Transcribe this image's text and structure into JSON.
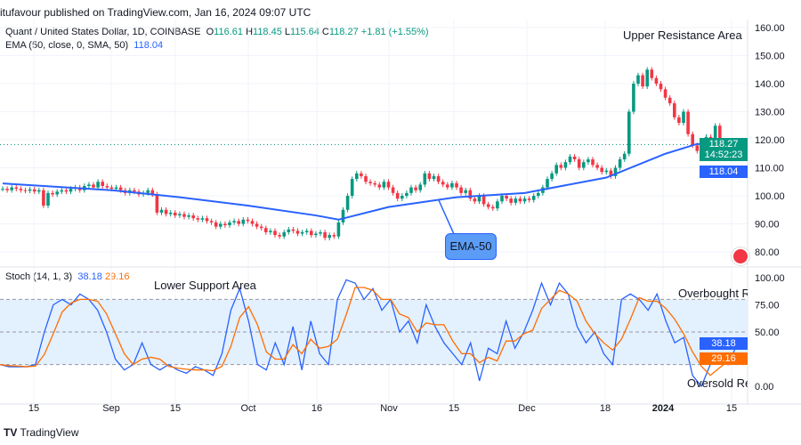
{
  "header": {
    "published": "itufavour published on TradingView.com, Jan 16, 2024 09:07 UTC"
  },
  "legend": {
    "symbol": "Quant / United States Dollar, 1D, COINBASE",
    "o_label": "O",
    "o": "116.61",
    "h_label": "H",
    "h": "118.45",
    "l_label": "L",
    "l": "115.64",
    "c_label": "C",
    "c": "118.27",
    "change": "+1.81 (+1.55%)",
    "ema_label": "EMA (50, close, 0, SMA, 50)",
    "ema_value": "118.04"
  },
  "stoch_legend": {
    "label": "Stoch (14, 1, 3)",
    "k": "38.18",
    "d": "29.16"
  },
  "annotations": {
    "upper": "Upper Resistance Area",
    "lower": "Lower Support Area",
    "overbought": "Overbought Regi",
    "oversold": "Oversold Regi",
    "ema_callout": "EMA-50"
  },
  "price_tags": {
    "last": "118.27",
    "countdown": "14:52:23",
    "ema": "118.04"
  },
  "stoch_tags": {
    "k": "38.18",
    "d": "29.16"
  },
  "footer": {
    "brand": "TradingView"
  },
  "colors": {
    "up": "#089981",
    "down": "#f23645",
    "ema": "#2962ff",
    "k": "#2962ff",
    "d": "#ff6d00",
    "band": "#e3f0fd"
  },
  "chart_data": [
    {
      "type": "candlestick",
      "title": "Quant / United States Dollar, 1D, COINBASE",
      "start_date": "2023-08-08",
      "end_date": "2024-01-16",
      "ylim": [
        78,
        162
      ],
      "y_ticks": [
        "160.00",
        "150.00",
        "140.00",
        "130.00",
        "120.00",
        "110.00",
        "100.00",
        "90.00",
        "80.00"
      ],
      "x_ticks": [
        "15",
        "Sep",
        "15",
        "Oct",
        "16",
        "Nov",
        "15",
        "Dec",
        "18",
        "2024",
        "15"
      ],
      "closes": [
        102.5,
        102,
        103,
        102.5,
        102,
        101.8,
        102.3,
        101.5,
        102,
        96.5,
        101,
        100.5,
        101.5,
        102,
        101.5,
        102.5,
        103,
        102,
        103.5,
        104,
        103,
        105,
        103.5,
        103,
        102.5,
        103,
        102,
        101,
        102,
        101.5,
        100.5,
        101,
        102,
        100.5,
        94,
        95,
        93.5,
        94,
        93,
        93.5,
        92.5,
        93,
        92,
        91.5,
        92,
        91,
        90.5,
        89,
        90,
        89.5,
        90.5,
        91,
        90,
        91.5,
        91,
        90,
        89,
        88.5,
        87,
        87.5,
        86,
        85.5,
        87,
        88,
        87.5,
        86.5,
        87,
        87.5,
        86,
        86.5,
        87,
        85,
        86,
        85.5,
        90.5,
        95,
        100,
        106,
        108,
        107,
        105,
        104.5,
        104,
        103,
        105,
        103,
        101,
        99,
        100,
        101,
        103,
        102,
        104,
        108,
        106,
        107,
        105,
        104,
        103,
        104.5,
        103,
        101,
        102,
        99,
        98,
        100,
        97,
        96,
        95.5,
        98,
        100,
        99,
        97.5,
        99,
        98,
        99,
        98.5,
        100,
        101,
        103,
        106,
        108,
        111,
        110,
        112,
        114,
        113,
        110,
        112,
        113,
        111,
        110,
        108.5,
        109,
        107,
        110,
        113,
        115,
        130,
        140,
        143,
        139,
        145,
        142,
        140,
        138,
        135,
        133,
        128,
        126,
        130,
        122,
        118,
        116,
        117,
        121,
        118,
        125,
        119,
        117,
        116.6,
        118.27
      ],
      "ema50": {
        "dates": [
          "2023-08-08",
          "2023-09-01",
          "2023-09-16",
          "2023-10-01",
          "2023-10-16",
          "2023-10-21",
          "2023-11-01",
          "2023-11-16",
          "2023-12-01",
          "2023-12-19",
          "2024-01-01",
          "2024-01-08",
          "2024-01-16"
        ],
        "values": [
          104.4,
          102,
          99.5,
          96.5,
          93,
          91.5,
          96,
          99.5,
          101,
          106.5,
          115,
          118.5,
          118.04
        ]
      }
    },
    {
      "type": "line",
      "title": "Stoch (14, 1, 3)",
      "ylim": [
        0,
        100
      ],
      "y_ticks": [
        "100.00",
        "75.00",
        "50.00",
        "0.00"
      ],
      "levels": [
        80,
        50,
        20
      ],
      "k": [
        20,
        18,
        18,
        18,
        20,
        50,
        75,
        80,
        75,
        85,
        80,
        70,
        50,
        25,
        15,
        20,
        40,
        20,
        15,
        20,
        15,
        12,
        18,
        15,
        10,
        30,
        70,
        90,
        60,
        20,
        15,
        40,
        20,
        55,
        15,
        60,
        30,
        20,
        80,
        98,
        95,
        80,
        90,
        70,
        80,
        50,
        60,
        40,
        75,
        55,
        40,
        30,
        20,
        40,
        5,
        35,
        30,
        60,
        35,
        50,
        70,
        95,
        75,
        95,
        85,
        55,
        40,
        50,
        30,
        20,
        80,
        85,
        80,
        70,
        85,
        60,
        40,
        45,
        10,
        0,
        20,
        30,
        20,
        38.18
      ]
    }
  ]
}
